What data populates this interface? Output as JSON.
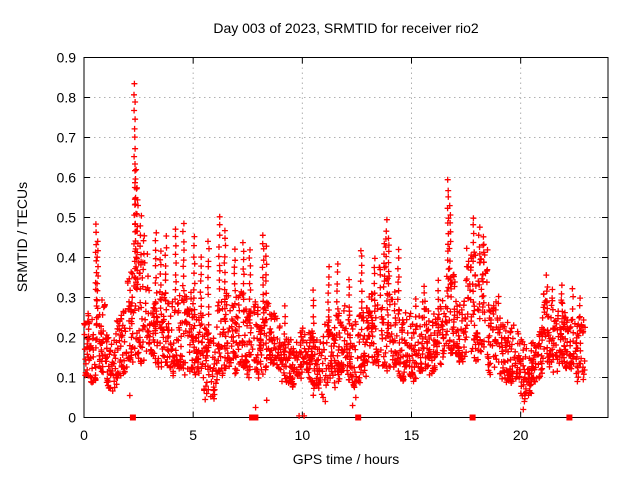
{
  "chart_data": {
    "type": "scatter",
    "title": "Day 003 of 2023, SRMTID for receiver rio2",
    "xlabel": "GPS time / hours",
    "ylabel": "SRMTID / TECUs",
    "xlim": [
      0,
      24
    ],
    "ylim": [
      0,
      0.9
    ],
    "xticks": [
      0,
      5,
      10,
      15,
      20
    ],
    "xtick_labels": [
      "0",
      "5",
      "10",
      "15",
      "20"
    ],
    "yticks": [
      0,
      0.1,
      0.2,
      0.3,
      0.4,
      0.5,
      0.6,
      0.7,
      0.8,
      0.9
    ],
    "ytick_labels": [
      "0",
      "0.1",
      "0.2",
      "0.3",
      "0.4",
      "0.5",
      "0.6",
      "0.7",
      "0.8",
      "0.9"
    ],
    "grid": true,
    "legend": "none",
    "marker": "plus",
    "marker_size_px": 7,
    "colors": {
      "series": "#ff0000",
      "grid": "#b0b0b0",
      "axis": "#000000",
      "background": "#ffffff"
    },
    "sampling_note": "dense scatter approximated by 0.5h envelope bins [low, high] plus explicit spike columns",
    "bin_hours": 0.5,
    "points_per_bin": 46,
    "t_end": 22.95,
    "seed": 11,
    "band_bins": [
      [
        0.09,
        0.26
      ],
      [
        0.1,
        0.28
      ],
      [
        0.08,
        0.22
      ],
      [
        0.1,
        0.26
      ],
      [
        0.13,
        0.36
      ],
      [
        0.15,
        0.42
      ],
      [
        0.14,
        0.3
      ],
      [
        0.12,
        0.3
      ],
      [
        0.11,
        0.3
      ],
      [
        0.12,
        0.32
      ],
      [
        0.09,
        0.26
      ],
      [
        0.06,
        0.22
      ],
      [
        0.1,
        0.3
      ],
      [
        0.12,
        0.32
      ],
      [
        0.12,
        0.3
      ],
      [
        0.1,
        0.28
      ],
      [
        0.12,
        0.3
      ],
      [
        0.12,
        0.25
      ],
      [
        0.1,
        0.22
      ],
      [
        0.08,
        0.21
      ],
      [
        0.1,
        0.23
      ],
      [
        0.06,
        0.22
      ],
      [
        0.08,
        0.25
      ],
      [
        0.1,
        0.28
      ],
      [
        0.08,
        0.26
      ],
      [
        0.1,
        0.28
      ],
      [
        0.12,
        0.3
      ],
      [
        0.13,
        0.38
      ],
      [
        0.11,
        0.3
      ],
      [
        0.1,
        0.26
      ],
      [
        0.1,
        0.26
      ],
      [
        0.12,
        0.28
      ],
      [
        0.12,
        0.28
      ],
      [
        0.15,
        0.36
      ],
      [
        0.15,
        0.3
      ],
      [
        0.15,
        0.42
      ],
      [
        0.15,
        0.42
      ],
      [
        0.12,
        0.3
      ],
      [
        0.1,
        0.25
      ],
      [
        0.08,
        0.22
      ],
      [
        0.05,
        0.2
      ],
      [
        0.1,
        0.22
      ],
      [
        0.12,
        0.3
      ],
      [
        0.12,
        0.28
      ],
      [
        0.12,
        0.28
      ],
      [
        0.1,
        0.26
      ]
    ],
    "spikes": [
      [
        0.55,
        0.48
      ],
      [
        0.62,
        0.44
      ],
      [
        2.32,
        0.83
      ],
      [
        2.38,
        0.62
      ],
      [
        2.45,
        0.57
      ],
      [
        2.6,
        0.5
      ],
      [
        2.75,
        0.46
      ],
      [
        3.3,
        0.46
      ],
      [
        3.5,
        0.42
      ],
      [
        3.75,
        0.45
      ],
      [
        4.2,
        0.47
      ],
      [
        4.55,
        0.485
      ],
      [
        5.05,
        0.45
      ],
      [
        5.35,
        0.4
      ],
      [
        5.7,
        0.44
      ],
      [
        6.2,
        0.5
      ],
      [
        6.45,
        0.47
      ],
      [
        6.9,
        0.42
      ],
      [
        7.3,
        0.44
      ],
      [
        7.6,
        0.42
      ],
      [
        8.2,
        0.46
      ],
      [
        8.35,
        0.43
      ],
      [
        9.2,
        0.28
      ],
      [
        10.5,
        0.32
      ],
      [
        11.2,
        0.38
      ],
      [
        11.6,
        0.38
      ],
      [
        12.15,
        0.35
      ],
      [
        12.7,
        0.42
      ],
      [
        13.3,
        0.4
      ],
      [
        13.75,
        0.43
      ],
      [
        13.85,
        0.49
      ],
      [
        13.95,
        0.45
      ],
      [
        14.4,
        0.42
      ],
      [
        15.2,
        0.3
      ],
      [
        15.6,
        0.33
      ],
      [
        16.2,
        0.34
      ],
      [
        16.68,
        0.59
      ],
      [
        16.76,
        0.53
      ],
      [
        17.85,
        0.5
      ],
      [
        18.1,
        0.47
      ],
      [
        18.3,
        0.45
      ],
      [
        21.2,
        0.35
      ],
      [
        21.45,
        0.32
      ],
      [
        21.9,
        0.33
      ],
      [
        22.4,
        0.32
      ],
      [
        22.7,
        0.3
      ]
    ],
    "extra_points": [
      [
        0.05,
        0.235
      ],
      [
        2.1,
        0.055
      ],
      [
        5.55,
        0.045
      ],
      [
        5.62,
        0.06
      ],
      [
        7.86,
        0.025
      ],
      [
        8.37,
        0.043
      ],
      [
        10.95,
        0.05
      ],
      [
        11.05,
        0.04
      ],
      [
        12.3,
        0.03
      ],
      [
        12.45,
        0.05
      ],
      [
        20.12,
        0.02
      ],
      [
        20.17,
        0.04
      ],
      [
        20.22,
        0.06
      ],
      [
        20.28,
        0.09
      ],
      [
        22.6,
        0.09
      ]
    ],
    "zero_square_hours": [
      2.24,
      7.7,
      7.85,
      12.56,
      17.8,
      22.23
    ],
    "zero_plus_hours": [
      9.85,
      10.08
    ]
  }
}
